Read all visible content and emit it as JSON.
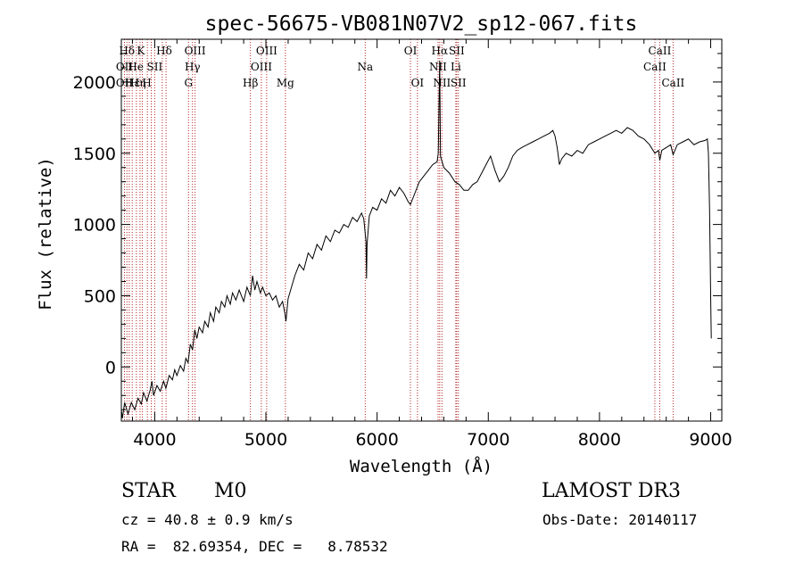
{
  "chart_data": {
    "type": "line",
    "title": "spec-56675-VB081N07V2_sp12-067.fits",
    "xlabel": "Wavelength (Å)",
    "ylabel": "Flux (relative)",
    "xlim": [
      3700,
      9100
    ],
    "ylim": [
      -380,
      2300
    ],
    "x_ticks": [
      4000,
      5000,
      6000,
      7000,
      8000,
      9000
    ],
    "y_ticks": [
      0,
      500,
      1000,
      1500,
      2000
    ],
    "grid": false,
    "series": [
      {
        "name": "flux",
        "points": [
          [
            3700,
            -300
          ],
          [
            3710,
            -360
          ],
          [
            3730,
            -250
          ],
          [
            3760,
            -330
          ],
          [
            3790,
            -250
          ],
          [
            3820,
            -300
          ],
          [
            3850,
            -220
          ],
          [
            3880,
            -260
          ],
          [
            3900,
            -180
          ],
          [
            3930,
            -240
          ],
          [
            3960,
            -160
          ],
          [
            3975,
            -100
          ],
          [
            3990,
            -200
          ],
          [
            4020,
            -130
          ],
          [
            4050,
            -170
          ],
          [
            4080,
            -100
          ],
          [
            4100,
            -150
          ],
          [
            4130,
            -60
          ],
          [
            4160,
            -90
          ],
          [
            4180,
            -20
          ],
          [
            4200,
            -60
          ],
          [
            4230,
            10
          ],
          [
            4260,
            -30
          ],
          [
            4280,
            60
          ],
          [
            4300,
            30
          ],
          [
            4320,
            160
          ],
          [
            4340,
            120
          ],
          [
            4360,
            260
          ],
          [
            4380,
            200
          ],
          [
            4400,
            280
          ],
          [
            4430,
            240
          ],
          [
            4450,
            320
          ],
          [
            4480,
            280
          ],
          [
            4500,
            380
          ],
          [
            4530,
            320
          ],
          [
            4550,
            420
          ],
          [
            4580,
            380
          ],
          [
            4600,
            460
          ],
          [
            4630,
            420
          ],
          [
            4650,
            500
          ],
          [
            4680,
            440
          ],
          [
            4700,
            520
          ],
          [
            4730,
            470
          ],
          [
            4760,
            540
          ],
          [
            4800,
            460
          ],
          [
            4830,
            560
          ],
          [
            4860,
            500
          ],
          [
            4880,
            640
          ],
          [
            4900,
            540
          ],
          [
            4920,
            600
          ],
          [
            4950,
            520
          ],
          [
            4970,
            560
          ],
          [
            5000,
            500
          ],
          [
            5030,
            520
          ],
          [
            5060,
            470
          ],
          [
            5090,
            500
          ],
          [
            5120,
            420
          ],
          [
            5150,
            460
          ],
          [
            5170,
            380
          ],
          [
            5180,
            320
          ],
          [
            5200,
            480
          ],
          [
            5230,
            560
          ],
          [
            5260,
            640
          ],
          [
            5300,
            720
          ],
          [
            5340,
            680
          ],
          [
            5380,
            800
          ],
          [
            5420,
            760
          ],
          [
            5460,
            860
          ],
          [
            5500,
            820
          ],
          [
            5540,
            920
          ],
          [
            5580,
            880
          ],
          [
            5620,
            960
          ],
          [
            5660,
            940
          ],
          [
            5700,
            1000
          ],
          [
            5740,
            980
          ],
          [
            5780,
            1050
          ],
          [
            5820,
            1020
          ],
          [
            5860,
            1080
          ],
          [
            5880,
            1040
          ],
          [
            5900,
            880
          ],
          [
            5905,
            620
          ],
          [
            5910,
            860
          ],
          [
            5930,
            1060
          ],
          [
            5960,
            1120
          ],
          [
            6000,
            1100
          ],
          [
            6040,
            1180
          ],
          [
            6080,
            1150
          ],
          [
            6120,
            1240
          ],
          [
            6160,
            1200
          ],
          [
            6200,
            1260
          ],
          [
            6240,
            1220
          ],
          [
            6280,
            1160
          ],
          [
            6300,
            1140
          ],
          [
            6340,
            1220
          ],
          [
            6380,
            1300
          ],
          [
            6420,
            1340
          ],
          [
            6460,
            1380
          ],
          [
            6500,
            1420
          ],
          [
            6540,
            1440
          ],
          [
            6550,
            1500
          ],
          [
            6563,
            2150
          ],
          [
            6570,
            1480
          ],
          [
            6600,
            1400
          ],
          [
            6650,
            1360
          ],
          [
            6700,
            1300
          ],
          [
            6740,
            1280
          ],
          [
            6780,
            1240
          ],
          [
            6820,
            1240
          ],
          [
            6860,
            1280
          ],
          [
            6900,
            1300
          ],
          [
            6940,
            1360
          ],
          [
            6980,
            1420
          ],
          [
            7020,
            1480
          ],
          [
            7060,
            1380
          ],
          [
            7100,
            1300
          ],
          [
            7140,
            1340
          ],
          [
            7180,
            1400
          ],
          [
            7220,
            1480
          ],
          [
            7260,
            1520
          ],
          [
            7300,
            1540
          ],
          [
            7350,
            1560
          ],
          [
            7400,
            1580
          ],
          [
            7450,
            1600
          ],
          [
            7500,
            1620
          ],
          [
            7550,
            1640
          ],
          [
            7580,
            1660
          ],
          [
            7600,
            1620
          ],
          [
            7620,
            1540
          ],
          [
            7640,
            1420
          ],
          [
            7660,
            1460
          ],
          [
            7700,
            1500
          ],
          [
            7750,
            1480
          ],
          [
            7800,
            1520
          ],
          [
            7850,
            1500
          ],
          [
            7900,
            1560
          ],
          [
            7950,
            1580
          ],
          [
            8000,
            1600
          ],
          [
            8050,
            1620
          ],
          [
            8100,
            1640
          ],
          [
            8150,
            1660
          ],
          [
            8200,
            1640
          ],
          [
            8250,
            1680
          ],
          [
            8300,
            1660
          ],
          [
            8350,
            1620
          ],
          [
            8400,
            1600
          ],
          [
            8450,
            1560
          ],
          [
            8498,
            1500
          ],
          [
            8530,
            1520
          ],
          [
            8542,
            1450
          ],
          [
            8560,
            1520
          ],
          [
            8600,
            1540
          ],
          [
            8640,
            1560
          ],
          [
            8662,
            1490
          ],
          [
            8700,
            1560
          ],
          [
            8750,
            1580
          ],
          [
            8800,
            1600
          ],
          [
            8850,
            1560
          ],
          [
            8900,
            1580
          ],
          [
            8950,
            1590
          ],
          [
            8970,
            1600
          ],
          [
            8980,
            1500
          ],
          [
            8990,
            1100
          ],
          [
            9000,
            500
          ],
          [
            9005,
            200
          ]
        ]
      }
    ],
    "line_markers": [
      {
        "label": "Hδ",
        "x": 3750,
        "row": 0
      },
      {
        "label": "OII",
        "x": 3728,
        "row": 1
      },
      {
        "label": "OII",
        "x": 3728,
        "row": 2
      },
      {
        "label": "Hε",
        "x": 3800,
        "row": 2
      },
      {
        "label": "K",
        "x": 3875,
        "row": 0
      },
      {
        "label": "He",
        "x": 3830,
        "row": 1
      },
      {
        "label": "Hη",
        "x": 3850,
        "row": 2
      },
      {
        "label": "H",
        "x": 3930,
        "row": 2
      },
      {
        "label": "Hδ",
        "x": 4085,
        "row": 0
      },
      {
        "label": "SII",
        "x": 4000,
        "row": 1
      },
      {
        "label": "OIII",
        "x": 4363,
        "row": 0
      },
      {
        "label": "Hγ",
        "x": 4340,
        "row": 1
      },
      {
        "label": "G",
        "x": 4304,
        "row": 2
      },
      {
        "label": "OIII",
        "x": 5007,
        "row": 0
      },
      {
        "label": "OIII",
        "x": 4959,
        "row": 1
      },
      {
        "label": "Hβ",
        "x": 4861,
        "row": 2
      },
      {
        "label": "Mg",
        "x": 5175,
        "row": 2
      },
      {
        "label": "Na",
        "x": 5893,
        "row": 1
      },
      {
        "label": "OI",
        "x": 6300,
        "row": 0
      },
      {
        "label": "OI",
        "x": 6363,
        "row": 2
      },
      {
        "label": "Hα",
        "x": 6563,
        "row": 0
      },
      {
        "label": "NII",
        "x": 6548,
        "row": 1
      },
      {
        "label": "NII",
        "x": 6583,
        "row": 2
      },
      {
        "label": "SII",
        "x": 6716,
        "row": 0
      },
      {
        "label": "Li",
        "x": 6708,
        "row": 1
      },
      {
        "label": "SII",
        "x": 6731,
        "row": 2
      },
      {
        "label": "CaII",
        "x": 8542,
        "row": 0
      },
      {
        "label": "CaII",
        "x": 8498,
        "row": 1
      },
      {
        "label": "CaII",
        "x": 8662,
        "row": 2
      }
    ],
    "marker_wavelengths": [
      3728,
      3750,
      3771,
      3798,
      3835,
      3868,
      3889,
      3934,
      3969,
      4000,
      4068,
      4102,
      4304,
      4340,
      4363,
      4861,
      4959,
      5007,
      5175,
      5893,
      6300,
      6363,
      6548,
      6563,
      6583,
      6708,
      6716,
      6731,
      8498,
      8542,
      8662
    ]
  },
  "info": {
    "class": "STAR",
    "subclass": "M0",
    "survey": "LAMOST DR3",
    "cz": "cz = 40.8 ± 0.9 km/s",
    "obs_date": "Obs-Date: 20140117",
    "radec": "RA =  82.69354, DEC =   8.78532"
  },
  "colors": {
    "marker_line": "#b22222",
    "spectrum": "#000000"
  }
}
